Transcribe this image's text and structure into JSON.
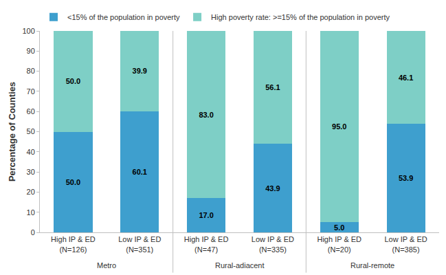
{
  "chart_data": {
    "type": "bar",
    "stacked": true,
    "y_label": "Percentage of Counties",
    "categories": [
      "High IP & ED (N=126)",
      "Low IP & ED (N=351)",
      "High IP & ED (N=47)",
      "Low IP & ED (N=335)",
      "High IP & ED (N=20)",
      "Low IP & ED (N=385)"
    ],
    "category_groups": [
      "Metro",
      "Metro",
      "Rural-adiacent",
      "Rural-adiacent",
      "Rural-remote",
      "Rural-remote"
    ],
    "series": [
      {
        "name": "<15% of the population in poverty",
        "color": "#3e9fce",
        "values": [
          50.0,
          60.1,
          17.0,
          43.9,
          5.0,
          53.9
        ],
        "value_labels": [
          "50.0",
          "60.1",
          "17.0",
          "43.9",
          "5.0",
          "53.9"
        ]
      },
      {
        "name": "High poverty rate: >=15% of the population in poverty",
        "color": "#7ecfc6",
        "values": [
          50.0,
          39.9,
          83.0,
          56.1,
          95.0,
          46.1
        ],
        "value_labels": [
          "50.0",
          "39.9",
          "83.0",
          "56.1",
          "95.0",
          "46.1"
        ]
      }
    ],
    "ylim": [
      0,
      100
    ],
    "yticks": [
      0,
      10,
      20,
      30,
      40,
      50,
      60,
      70,
      80,
      90,
      100
    ],
    "grid": false,
    "legend": "top-left",
    "data_labels": true
  }
}
